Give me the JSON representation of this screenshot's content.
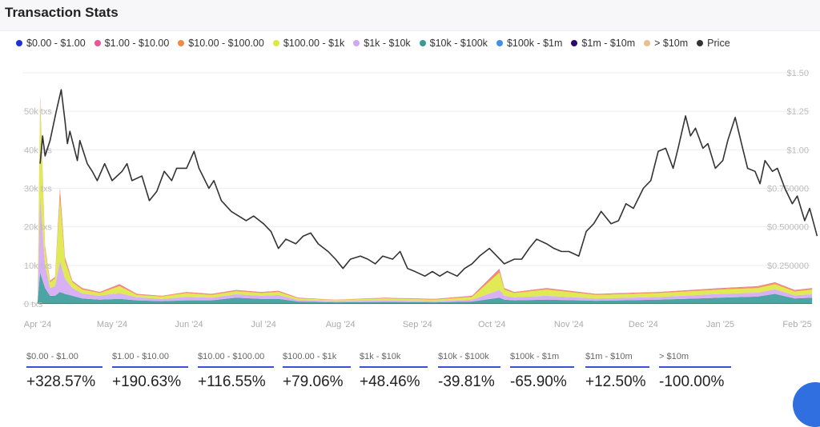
{
  "header": {
    "title": "Transaction Stats"
  },
  "legend": [
    {
      "label": "$0.00 - $1.00",
      "color": "#1f2fd1"
    },
    {
      "label": "$1.00 - $10.00",
      "color": "#e8559c"
    },
    {
      "label": "$10.00 - $100.00",
      "color": "#f08a44"
    },
    {
      "label": "$100.00 - $1k",
      "color": "#dde842"
    },
    {
      "label": "$1k - $10k",
      "color": "#d3a8f2"
    },
    {
      "label": "$10k - $100k",
      "color": "#3a9a9a"
    },
    {
      "label": "$100k - $1m",
      "color": "#3f8ee8"
    },
    {
      "label": "$1m - $10m",
      "color": "#2a0a6e"
    },
    {
      "label": "> $10m",
      "color": "#e8bf8f"
    },
    {
      "label": "Price",
      "color": "#333333"
    }
  ],
  "chart_data": {
    "type": "area",
    "title": "Transaction Stats",
    "x_unit": "days since 2024-04-01",
    "xlim": [
      0,
      312
    ],
    "x_ticks": [
      {
        "label": "Apr '24",
        "day": 0
      },
      {
        "label": "May '24",
        "day": 30
      },
      {
        "label": "Jun '24",
        "day": 61
      },
      {
        "label": "Jul '24",
        "day": 91
      },
      {
        "label": "Aug '24",
        "day": 122
      },
      {
        "label": "Sep '24",
        "day": 153
      },
      {
        "label": "Oct '24",
        "day": 183
      },
      {
        "label": "Nov '24",
        "day": 214
      },
      {
        "label": "Dec '24",
        "day": 244
      },
      {
        "label": "Jan '25",
        "day": 275
      },
      {
        "label": "Feb '25",
        "day": 306
      }
    ],
    "y_left": {
      "label": "txs",
      "ylim": [
        0,
        60
      ],
      "ticks": [
        {
          "v": 0,
          "label": "0 txs"
        },
        {
          "v": 10,
          "label": "10k txs"
        },
        {
          "v": 20,
          "label": "20k txs"
        },
        {
          "v": 30,
          "label": "30k txs"
        },
        {
          "v": 40,
          "label": "40k txs"
        },
        {
          "v": 50,
          "label": "50k txs"
        }
      ]
    },
    "y_right": {
      "label": "Price",
      "ylim": [
        0,
        1.5
      ],
      "ticks": [
        {
          "v": 0.25,
          "label": "$0.250000"
        },
        {
          "v": 0.5,
          "label": "$0.500000"
        },
        {
          "v": 0.75,
          "label": "$0.750000"
        },
        {
          "v": 1.0,
          "label": "$1.00"
        },
        {
          "v": 1.25,
          "label": "$1.25"
        },
        {
          "v": 1.5,
          "label": "$1.50"
        }
      ]
    },
    "grid": true,
    "legend_position": "top",
    "volume_days": [
      0,
      1,
      3,
      5,
      7,
      9,
      11,
      14,
      18,
      25,
      33,
      40,
      50,
      60,
      70,
      80,
      90,
      97,
      105,
      120,
      140,
      160,
      175,
      186,
      188,
      192,
      205,
      225,
      250,
      275,
      290,
      297,
      305,
      312
    ],
    "series": [
      {
        "name": "$0.00 - $1.00",
        "values": [
          0.05,
          0.1,
          0.1,
          0.1,
          0.1,
          0.1,
          0.1,
          0.1,
          0.1,
          0.1,
          0.1,
          0.1,
          0.1,
          0.1,
          0.1,
          0.1,
          0.1,
          0.1,
          0.1,
          0.1,
          0.1,
          0.1,
          0.1,
          0.1,
          0.1,
          0.1,
          0.1,
          0.1,
          0.1,
          0.1,
          0.1,
          0.1,
          0.1,
          0.1
        ]
      },
      {
        "name": "$10k - $100k",
        "values": [
          0.6,
          8,
          4,
          2,
          2,
          3,
          2.5,
          2,
          1.3,
          1,
          1.2,
          0.8,
          0.6,
          0.8,
          0.8,
          1.5,
          1.2,
          1.2,
          0.5,
          0.3,
          0.4,
          0.3,
          0.5,
          1.5,
          1,
          0.8,
          1,
          0.7,
          1,
          1.5,
          1.8,
          2.5,
          1.3,
          1.5
        ]
      },
      {
        "name": "$100k - $1m",
        "values": []
      },
      {
        "name": "$1m - $10m",
        "values": []
      },
      {
        "name": "> $10m",
        "values": []
      },
      {
        "name": "$1k - $10k",
        "values": [
          0.6,
          20,
          6,
          2,
          2.5,
          8,
          4,
          2,
          1.3,
          1,
          1.5,
          0.8,
          0.6,
          0.9,
          0.7,
          0.9,
          0.8,
          1,
          0.4,
          0.3,
          0.4,
          0.3,
          0.5,
          2,
          1,
          0.8,
          1,
          0.6,
          0.7,
          1,
          1,
          1.2,
          0.8,
          0.9
        ]
      },
      {
        "name": "$100.00 - $1k",
        "values": [
          0.5,
          24,
          4,
          1.5,
          2,
          16,
          4.5,
          1.5,
          1,
          0.7,
          1.8,
          0.6,
          0.6,
          1,
          0.7,
          0.8,
          0.7,
          0.8,
          0.4,
          0.3,
          0.5,
          0.4,
          0.7,
          4.5,
          1.6,
          1.1,
          1.6,
          0.9,
          1,
          1.1,
          1.2,
          1.3,
          1,
          1.2
        ]
      },
      {
        "name": "$10.00 - $100.00",
        "values": [
          0.2,
          1.5,
          0.7,
          0.3,
          0.3,
          2.5,
          0.7,
          0.3,
          0.3,
          0.2,
          0.3,
          0.2,
          0.15,
          0.2,
          0.2,
          0.2,
          0.2,
          0.2,
          0.15,
          0.08,
          0.15,
          0.15,
          0.2,
          0.7,
          0.3,
          0.2,
          0.3,
          0.2,
          0.2,
          0.3,
          0.4,
          0.4,
          0.3,
          0.3
        ]
      },
      {
        "name": "$1.00 - $10.00",
        "values": [
          0.05,
          0.5,
          0.3,
          0.1,
          0.1,
          0.5,
          0.3,
          0.1,
          0.1,
          0.1,
          0.2,
          0.1,
          0.05,
          0.1,
          0.1,
          0.1,
          0.1,
          0.1,
          0.05,
          0.02,
          0.05,
          0.05,
          0.1,
          0.3,
          0.1,
          0.1,
          0.1,
          0.1,
          0.1,
          0.1,
          0.1,
          0.1,
          0.1,
          0.1
        ]
      }
    ],
    "price": {
      "days": [
        1,
        2,
        3,
        5,
        7.5,
        9.5,
        11,
        12,
        13,
        16,
        17,
        20,
        22,
        24,
        27,
        30,
        34,
        36,
        38,
        42,
        45,
        48,
        51,
        54,
        56,
        60,
        63,
        65,
        69,
        71,
        74,
        78,
        81,
        84,
        87,
        91,
        94,
        97,
        100,
        104,
        107,
        110,
        113,
        117,
        120,
        123,
        126,
        130,
        133,
        136,
        139,
        143,
        146,
        149,
        152,
        156,
        159,
        162,
        165,
        169,
        172,
        175,
        178,
        182,
        185,
        188,
        192,
        195,
        198,
        201,
        205,
        208,
        211,
        214,
        218,
        221,
        224,
        227,
        231,
        234,
        237,
        240,
        244,
        247,
        250,
        253,
        256,
        258,
        261,
        263,
        265,
        268,
        270,
        273,
        276,
        278,
        281,
        284,
        286,
        289,
        291,
        293,
        296,
        298,
        301,
        304,
        306,
        309,
        311,
        314
      ],
      "values": [
        0.91,
        1.09,
        0.96,
        1.06,
        1.25,
        1.39,
        1.19,
        1.04,
        1.12,
        0.93,
        1.06,
        0.91,
        0.86,
        0.8,
        0.91,
        0.8,
        0.86,
        0.91,
        0.8,
        0.83,
        0.67,
        0.73,
        0.86,
        0.8,
        0.88,
        0.88,
        0.99,
        0.88,
        0.75,
        0.8,
        0.67,
        0.6,
        0.57,
        0.54,
        0.57,
        0.52,
        0.47,
        0.36,
        0.42,
        0.39,
        0.44,
        0.46,
        0.39,
        0.34,
        0.29,
        0.23,
        0.29,
        0.31,
        0.29,
        0.26,
        0.31,
        0.29,
        0.34,
        0.23,
        0.21,
        0.18,
        0.21,
        0.18,
        0.21,
        0.18,
        0.23,
        0.26,
        0.31,
        0.36,
        0.31,
        0.26,
        0.29,
        0.29,
        0.36,
        0.42,
        0.39,
        0.36,
        0.34,
        0.34,
        0.31,
        0.47,
        0.52,
        0.6,
        0.52,
        0.54,
        0.65,
        0.62,
        0.75,
        0.8,
        0.99,
        1.01,
        0.88,
        1.01,
        1.22,
        1.09,
        1.14,
        1.01,
        1.04,
        0.88,
        0.93,
        1.06,
        1.21,
        1.01,
        0.88,
        0.86,
        0.78,
        0.93,
        0.86,
        0.88,
        0.75,
        0.65,
        0.7,
        0.54,
        0.62,
        0.44
      ]
    }
  },
  "stats": [
    {
      "label": "$0.00 - $1.00",
      "value": "+328.57%"
    },
    {
      "label": "$1.00 - $10.00",
      "value": "+190.63%"
    },
    {
      "label": "$10.00 - $100.00",
      "value": "+116.55%"
    },
    {
      "label": "$100.00 - $1k",
      "value": "+79.06%"
    },
    {
      "label": "$1k - $10k",
      "value": "+48.46%"
    },
    {
      "label": "$10k - $100k",
      "value": "-39.81%"
    },
    {
      "label": "$100k - $1m",
      "value": "-65.90%"
    },
    {
      "label": "$1m - $10m",
      "value": "+12.50%"
    },
    {
      "label": "> $10m",
      "value": "-100.00%"
    }
  ]
}
